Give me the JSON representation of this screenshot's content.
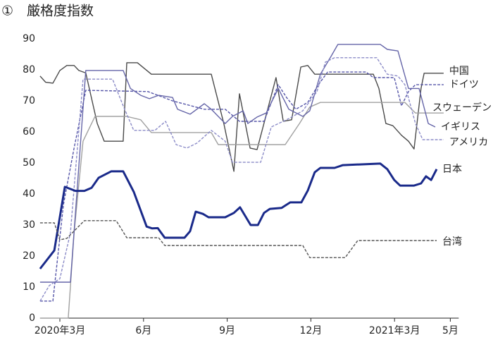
{
  "chart_data": {
    "type": "line",
    "title": "①　厳格度指数",
    "xlim": [
      2.29,
      17.3
    ],
    "ylim": [
      0,
      90
    ],
    "xticks": [
      {
        "value": 3,
        "label": "2020年3月"
      },
      {
        "value": 6,
        "label": "6月"
      },
      {
        "value": 9,
        "label": "9月"
      },
      {
        "value": 12,
        "label": "12月"
      },
      {
        "value": 15,
        "label": "2021年3月"
      },
      {
        "value": 17,
        "label": "5月"
      }
    ],
    "yticks": [
      0,
      10,
      20,
      30,
      40,
      50,
      60,
      70,
      80,
      90
    ],
    "grid": false,
    "series": [
      {
        "name": "中国",
        "color": "#4a4a4a",
        "style": "solid",
        "x": [
          2.29,
          2.49,
          2.75,
          3.0,
          3.25,
          3.51,
          3.68,
          3.93,
          4.34,
          4.59,
          5.27,
          5.4,
          5.78,
          6.28,
          8.43,
          8.88,
          9.24,
          9.44,
          9.82,
          10.07,
          10.75,
          11.01,
          11.31,
          11.64,
          11.89,
          12.14,
          14.24,
          14.44,
          14.69,
          14.94,
          15.25,
          15.5,
          15.7,
          15.95,
          16.06,
          16.76
        ],
        "values": [
          78,
          76,
          75.7,
          79.8,
          81.4,
          81.4,
          79.8,
          79,
          62.7,
          57,
          57,
          82.3,
          82.3,
          78.6,
          78.6,
          62.7,
          47.3,
          72.3,
          54.8,
          54.3,
          77.5,
          63.4,
          63.9,
          80.9,
          81.4,
          78.6,
          78.6,
          74,
          62.7,
          62,
          58.9,
          57,
          54.5,
          74,
          78.9,
          78.9
        ]
      },
      {
        "name": "ドイツ",
        "color": "#5555a8",
        "style": "dashed",
        "x": [
          2.29,
          2.75,
          3.13,
          3.51,
          3.93,
          6.16,
          7.04,
          8.18,
          8.93,
          9.44,
          10.32,
          10.83,
          11.13,
          11.46,
          11.89,
          12.27,
          12.6,
          13.98,
          14.24,
          14.99,
          15.25,
          15.5,
          15.75,
          16.76
        ],
        "values": [
          5.5,
          5.5,
          36.6,
          54.8,
          73.4,
          73,
          70,
          67.3,
          67.3,
          63.4,
          63.4,
          75.2,
          71.1,
          67.3,
          69.5,
          75.2,
          79.3,
          79.3,
          77.5,
          77.5,
          68.4,
          73,
          75.2,
          75.2
        ]
      },
      {
        "name": "スウェーデン",
        "color": "#a0a0a0",
        "style": "solid",
        "x": [
          2.29,
          3.3,
          3.51,
          3.83,
          4.26,
          5.4,
          5.9,
          6.28,
          8.43,
          8.68,
          11.08,
          11.59,
          11.96,
          12.34,
          15.37,
          15.75,
          16.76
        ],
        "values": [
          0,
          0,
          27.5,
          57,
          65,
          65,
          63.9,
          59.8,
          59.8,
          55.9,
          55.9,
          62.7,
          68,
          69.5,
          69.5,
          66.1,
          66.1
        ]
      },
      {
        "name": "イギリス",
        "color": "#6565a8",
        "style": "solid",
        "x": [
          2.29,
          3.38,
          3.93,
          5.27,
          5.53,
          5.9,
          6.21,
          6.54,
          7.04,
          7.22,
          7.67,
          8.18,
          8.43,
          8.93,
          9.19,
          9.57,
          9.74,
          10.07,
          10.4,
          10.83,
          11.21,
          11.71,
          11.96,
          12.34,
          12.72,
          12.97,
          14.49,
          14.74,
          15.12,
          15.5,
          15.88,
          16.21,
          16.46
        ],
        "values": [
          11.6,
          11.6,
          79.8,
          79.8,
          74,
          71.8,
          70.7,
          71.8,
          71.1,
          67.3,
          65.7,
          69.1,
          67.3,
          62.7,
          65,
          66.8,
          62.7,
          64.8,
          66.1,
          74,
          67.3,
          65,
          66.8,
          78.6,
          84.3,
          88.2,
          88.2,
          86.6,
          86.1,
          74,
          74,
          62.7,
          61.6
        ]
      },
      {
        "name": "アメリカ",
        "color": "#8c8cc8",
        "style": "dashed",
        "x": [
          2.29,
          2.62,
          3.0,
          3.38,
          3.83,
          4.89,
          5.27,
          5.65,
          6.41,
          6.79,
          7.17,
          7.55,
          7.92,
          8.43,
          8.93,
          9.19,
          10.2,
          10.58,
          11.21,
          11.71,
          12.22,
          12.52,
          12.85,
          14.36,
          14.74,
          15.12,
          15.37,
          15.75,
          16.01,
          16.76
        ],
        "values": [
          5.5,
          10.5,
          12.7,
          27.5,
          77,
          77,
          68.4,
          60.5,
          60.5,
          63.4,
          55.9,
          54.8,
          56.4,
          60.5,
          57,
          50.2,
          50.2,
          61.6,
          64.3,
          66.8,
          73,
          82.5,
          83.9,
          83.9,
          78.6,
          78,
          75.2,
          62.7,
          57.5,
          57.5
        ]
      },
      {
        "name": "日本",
        "color": "#1a2a8a",
        "style": "bold",
        "x": [
          2.29,
          2.8,
          3.18,
          3.56,
          3.88,
          4.14,
          4.39,
          4.84,
          5.27,
          5.65,
          6.11,
          6.31,
          6.51,
          6.76,
          7.47,
          7.67,
          7.87,
          8.13,
          8.33,
          8.93,
          9.24,
          9.46,
          9.84,
          10.1,
          10.32,
          10.53,
          10.95,
          11.26,
          11.66,
          11.89,
          12.14,
          12.34,
          12.85,
          13.15,
          14.49,
          14.74,
          14.99,
          15.2,
          15.7,
          15.95,
          16.13,
          16.31,
          16.51
        ],
        "values": [
          15.9,
          21.8,
          42.3,
          41,
          41,
          42,
          45.2,
          47.3,
          47.3,
          40.7,
          29.5,
          28.9,
          29,
          25.9,
          25.9,
          28,
          34.3,
          33.6,
          32.5,
          32.5,
          33.9,
          35.7,
          30,
          30,
          33.9,
          35.2,
          35.5,
          37.3,
          37.3,
          41.1,
          47,
          48.4,
          48.4,
          49.3,
          49.8,
          48,
          44.5,
          42.7,
          42.7,
          43.4,
          45.7,
          44.5,
          48
        ]
      },
      {
        "name": "台湾",
        "color": "#555555",
        "style": "dashed",
        "x": [
          2.29,
          2.8,
          3.0,
          3.25,
          3.88,
          5.02,
          5.4,
          6.54,
          6.76,
          11.71,
          11.96,
          13.23,
          13.68,
          16.51
        ],
        "values": [
          30.7,
          30.7,
          25.2,
          25.7,
          31.4,
          31.4,
          25.9,
          25.9,
          23.4,
          23.4,
          19.5,
          19.5,
          25,
          25
        ]
      }
    ]
  }
}
